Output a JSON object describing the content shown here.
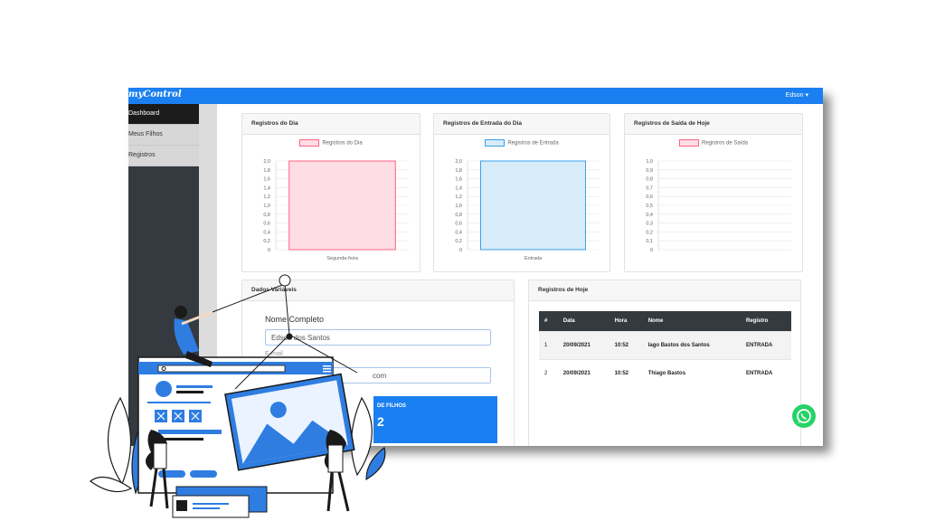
{
  "app": {
    "brand": "myControl",
    "user": "Edson"
  },
  "sidebar": {
    "items": [
      {
        "label": "Dashboard"
      },
      {
        "label": "Meus Filhos"
      },
      {
        "label": "Registros"
      }
    ]
  },
  "cards": {
    "day": {
      "title": "Registros do Dia",
      "legend": "Registros do Dia",
      "color": "#ff6384"
    },
    "entry": {
      "title": "Registros de Entrada do Dia",
      "legend": "Registros de Entrada",
      "color": "#36a2eb"
    },
    "exit": {
      "title": "Registros de Saída de Hoje",
      "legend": "Registros de Saída",
      "color": "#ff6384"
    }
  },
  "chart_data": [
    {
      "type": "bar",
      "categories": [
        "Segunda-feira"
      ],
      "series": [
        {
          "name": "Registros do Dia",
          "values": [
            2
          ]
        }
      ],
      "yticks": [
        "0",
        "0,2",
        "0,4",
        "0,6",
        "0,8",
        "1,0",
        "1,2",
        "1,4",
        "1,6",
        "1,8",
        "2,0"
      ],
      "ylim": [
        0,
        2
      ]
    },
    {
      "type": "bar",
      "categories": [
        "Entrada"
      ],
      "series": [
        {
          "name": "Registros de Entrada",
          "values": [
            2
          ]
        }
      ],
      "yticks": [
        "0",
        "0,2",
        "0,4",
        "0,6",
        "0,8",
        "1,0",
        "1,2",
        "1,4",
        "1,6",
        "1,8",
        "2,0"
      ],
      "ylim": [
        0,
        2
      ]
    },
    {
      "type": "bar",
      "categories": [],
      "series": [
        {
          "name": "Registros de Saída",
          "values": []
        }
      ],
      "yticks": [
        "0",
        "0,1",
        "0,2",
        "0,3",
        "0,4",
        "0,5",
        "0,6",
        "0,7",
        "0,8",
        "0,9",
        "1,0"
      ],
      "ylim": [
        0,
        1
      ]
    }
  ],
  "form": {
    "title": "Dados Variáveis",
    "name_label": "Nome Completo",
    "name_value": "Edson dos Santos",
    "email_label": "E-mail",
    "email_value": "com",
    "kpi_label": "DE FILHOS",
    "kpi_value": "2"
  },
  "table": {
    "title": "Registros de Hoje",
    "headers": [
      "#",
      "Data",
      "Hora",
      "Nome",
      "Registro"
    ],
    "rows": [
      [
        "1",
        "20/09/2021",
        "10:52",
        "Iago Bastos dos Santos",
        "ENTRADA"
      ],
      [
        "2",
        "20/09/2021",
        "10:52",
        "Thiago Bastos",
        "ENTRADA"
      ]
    ]
  }
}
